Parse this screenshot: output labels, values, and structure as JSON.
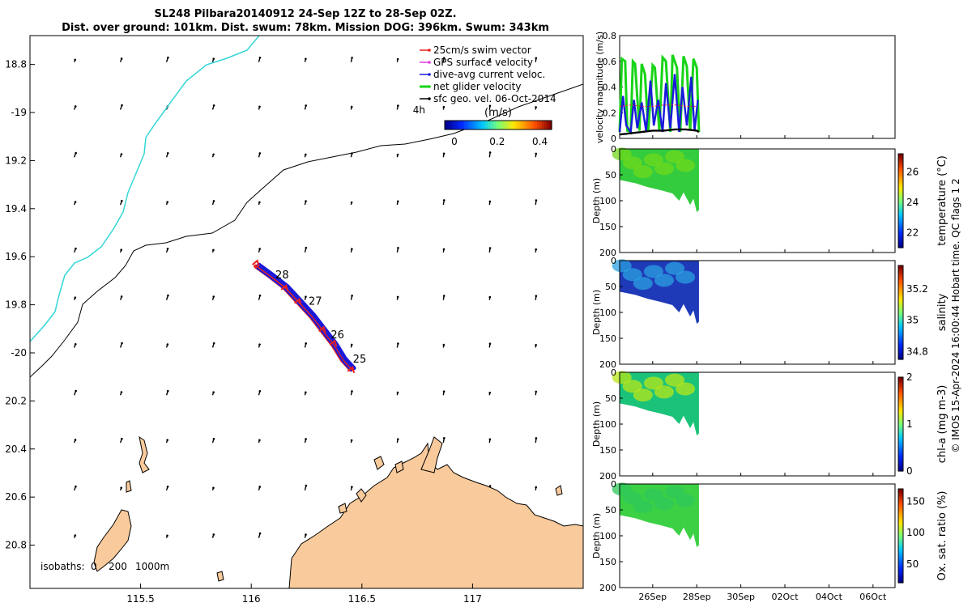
{
  "title": {
    "line1": "SL248 Pilbara20140912 24-Sep 12Z to 28-Sep 02Z.",
    "line2": "Dist. over ground: 101km. Dist. swum: 78km. Mission DOG: 396km. Swum: 343km"
  },
  "colors": {
    "land": "#F9CA9B",
    "coast_isobath": "#33D6D6",
    "swim": "#E8211E",
    "gps": "#E23BE0",
    "current": "#1A1ADB",
    "net": "#18D418",
    "geo": "#000000"
  },
  "chart_data": [
    {
      "type": "map",
      "name": "glider track map",
      "lon_ticks": [
        "115.5",
        "116",
        "116.5",
        "117"
      ],
      "lat_ticks": [
        "18.8",
        "-19",
        "19.2",
        "19.4",
        "19.6",
        "19.8",
        "-20",
        "20.2",
        "20.4",
        "20.6",
        "20.8"
      ],
      "lon_range": [
        115.0,
        117.5
      ],
      "lat_range": [
        -20.98,
        -18.68
      ],
      "legend": [
        {
          "label": "25cm/s swim vector",
          "color": "#E8211E"
        },
        {
          "label": "GPS surface velocity",
          "color": "#E23BE0"
        },
        {
          "label": "dive-avg current veloc.",
          "color": "#1A1ADB"
        },
        {
          "label": "net glider velocity",
          "color": "#18D418"
        },
        {
          "label": "sfc geo. vel. 06-Oct-2014",
          "color": "#000000"
        }
      ],
      "speed_colorbar": {
        "title": "(m/s)",
        "ticks": [
          "0",
          "0.2",
          "0.4"
        ],
        "range": [
          0,
          0.5
        ]
      },
      "time_note": "4h",
      "day_labels": [
        {
          "label": "28",
          "lon": 116.08,
          "lat": -19.67
        },
        {
          "label": "27",
          "lon": 116.23,
          "lat": -19.78
        },
        {
          "label": "26",
          "lon": 116.33,
          "lat": -19.92
        },
        {
          "label": "25",
          "lon": 116.43,
          "lat": -20.02
        }
      ],
      "track": [
        [
          116.02,
          -19.64
        ],
        [
          116.08,
          -19.68
        ],
        [
          116.15,
          -19.73
        ],
        [
          116.21,
          -19.79
        ],
        [
          116.27,
          -19.85
        ],
        [
          116.32,
          -19.91
        ],
        [
          116.37,
          -19.97
        ],
        [
          116.41,
          -20.03
        ],
        [
          116.45,
          -20.07
        ]
      ],
      "isobaths": {
        "label": "isobaths:",
        "values": [
          "0",
          "200",
          "1000m"
        ]
      }
    },
    {
      "type": "line",
      "name": "velocity magnitude",
      "ylabel": "velocity magnitude (m/s)",
      "ylim": [
        0,
        0.8
      ],
      "yticks": [
        "0",
        "0.2",
        "0.4",
        "0.6",
        "0.8"
      ],
      "xlim_days": [
        24.5,
        37.0
      ],
      "series": [
        {
          "name": "net glider velocity",
          "color": "#18D418",
          "t": [
            24.5,
            24.6,
            24.75,
            24.85,
            25.0,
            25.1,
            25.2,
            25.4,
            25.5,
            25.65,
            25.8,
            26.0,
            26.1,
            26.3,
            26.45,
            26.6,
            26.8,
            26.9,
            27.1,
            27.25,
            27.4,
            27.55,
            27.7,
            27.85,
            28.0,
            28.1
          ],
          "v": [
            0.05,
            0.62,
            0.6,
            0.06,
            0.05,
            0.6,
            0.58,
            0.06,
            0.58,
            0.5,
            0.06,
            0.57,
            0.55,
            0.06,
            0.63,
            0.6,
            0.05,
            0.65,
            0.55,
            0.05,
            0.64,
            0.56,
            0.06,
            0.62,
            0.55,
            0.05
          ]
        },
        {
          "name": "dive-avg current veloc.",
          "color": "#1A1ADB",
          "t": [
            24.5,
            24.65,
            24.8,
            25.0,
            25.15,
            25.3,
            25.5,
            25.7,
            25.9,
            26.05,
            26.25,
            26.45,
            26.6,
            26.8,
            27.0,
            27.2,
            27.35,
            27.55,
            27.75,
            27.9,
            28.05
          ],
          "v": [
            0.05,
            0.33,
            0.1,
            0.05,
            0.3,
            0.08,
            0.28,
            0.06,
            0.45,
            0.1,
            0.3,
            0.05,
            0.43,
            0.08,
            0.5,
            0.05,
            0.4,
            0.1,
            0.48,
            0.06,
            0.3
          ]
        },
        {
          "name": "swim",
          "color": "#E8211E",
          "t": [
            24.5,
            25.0,
            25.5,
            26.0,
            26.5,
            27.0,
            27.5,
            28.0
          ],
          "v": [
            0.25,
            0.26,
            0.25,
            0.25,
            0.26,
            0.26,
            0.25,
            0.25
          ]
        },
        {
          "name": "sfc geo. vel.",
          "color": "#000000",
          "t": [
            24.5,
            25.0,
            25.5,
            26.0,
            26.5,
            27.0,
            27.5,
            28.0,
            28.1
          ],
          "v": [
            0.03,
            0.04,
            0.05,
            0.06,
            0.06,
            0.07,
            0.07,
            0.06,
            0.05
          ]
        }
      ]
    },
    {
      "type": "heatmap",
      "name": "temperature section",
      "ylabel": "Depth (m)",
      "yticks": [
        "0",
        "50",
        "100",
        "150",
        "200"
      ],
      "ylim": [
        0,
        200
      ],
      "colorbar_label": "temperature (°C)",
      "cbar_ticks": [
        "22",
        "24",
        "26"
      ],
      "cbar_range": [
        21,
        27.2
      ],
      "fill_color": "#33CC3F",
      "accent_color": "#6FD81C"
    },
    {
      "type": "heatmap",
      "name": "salinity section",
      "ylabel": "Depth (m)",
      "yticks": [
        "0",
        "50",
        "100",
        "150",
        "200"
      ],
      "ylim": [
        0,
        200
      ],
      "colorbar_label": "salinity",
      "cbar_ticks": [
        "34.8",
        "35",
        "35.2"
      ],
      "cbar_range": [
        34.75,
        35.35
      ],
      "fill_color": "#1F3AB8",
      "accent_color": "#2BA0E0"
    },
    {
      "type": "heatmap",
      "name": "chlorophyll section",
      "ylabel": "Depth (m)",
      "yticks": [
        "0",
        "50",
        "100",
        "150",
        "200"
      ],
      "ylim": [
        0,
        200
      ],
      "colorbar_label": "chl-a (mg m-3)",
      "cbar_ticks": [
        "0",
        "1",
        "2"
      ],
      "cbar_range": [
        0,
        2
      ],
      "fill_color": "#1BC37A",
      "accent_color": "#B8E61A"
    },
    {
      "type": "heatmap",
      "name": "oxygen saturation section",
      "ylabel": "Depth (m)",
      "yticks": [
        "0",
        "50",
        "100",
        "150",
        "200"
      ],
      "ylim": [
        0,
        200
      ],
      "colorbar_label": "Ox. sat. ratio (%)",
      "cbar_ticks": [
        "50",
        "100",
        "150"
      ],
      "cbar_range": [
        20,
        170
      ],
      "fill_color": "#3CD045",
      "accent_color": "#2EC85A"
    }
  ],
  "time_axis": {
    "ticks": [
      "26Sep",
      "28Sep",
      "30Sep",
      "02Oct",
      "04Oct",
      "06Oct"
    ],
    "days": [
      26,
      28,
      30,
      32,
      34,
      36
    ]
  },
  "footer": "© IMOS 15-Apr-2024 16:00:44 Hobart time. QC flags 1  2"
}
